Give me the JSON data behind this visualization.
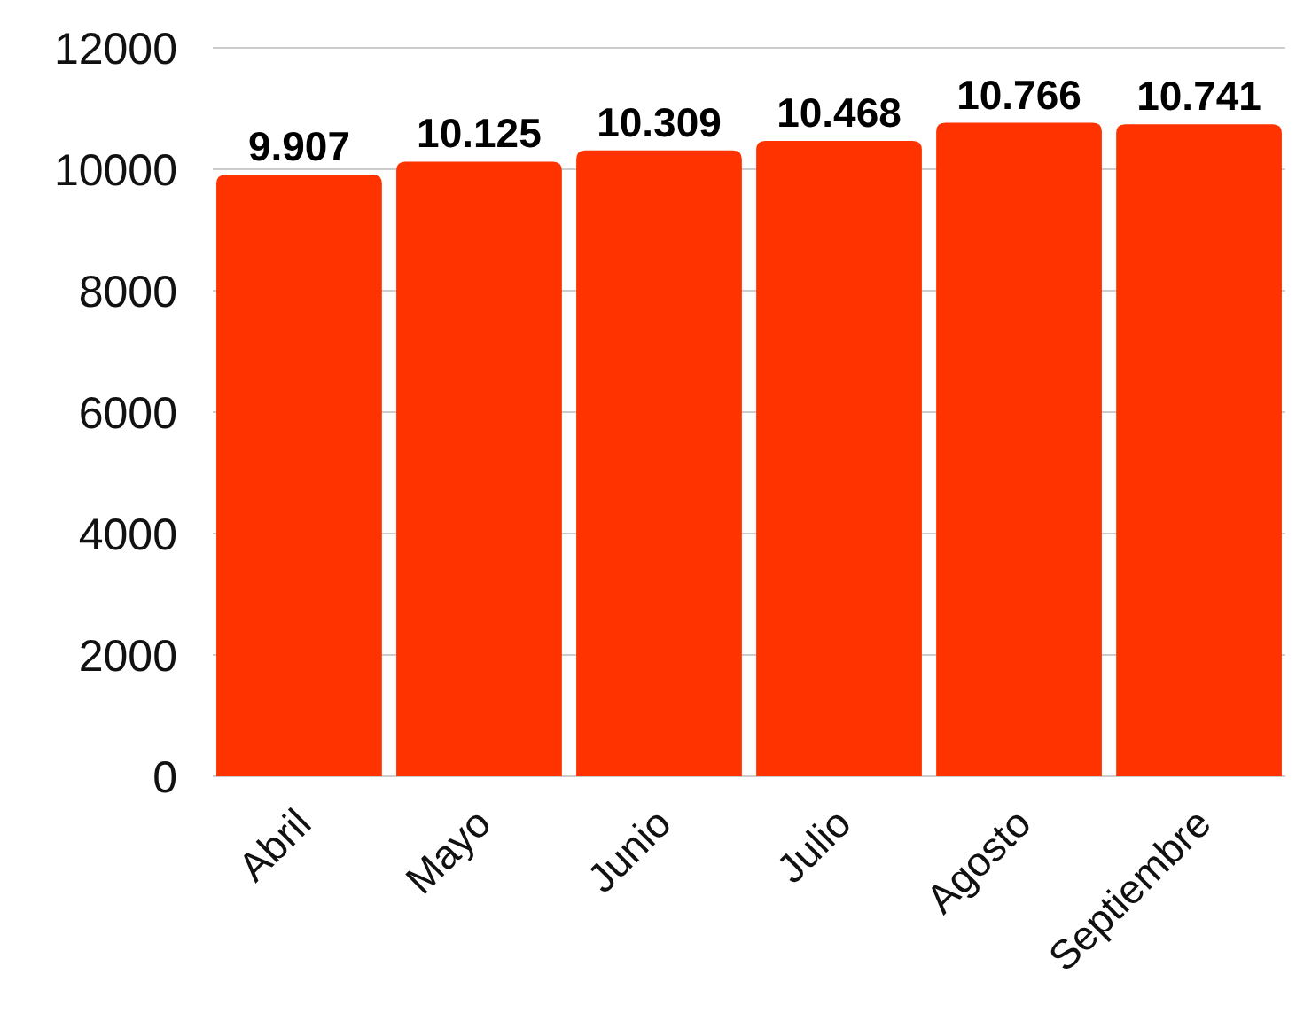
{
  "chart_data": {
    "type": "bar",
    "categories": [
      "Abril",
      "Mayo",
      "Junio",
      "Julio",
      "Agosto",
      "Septiembre"
    ],
    "values": [
      9907,
      10125,
      10309,
      10468,
      10766,
      10741
    ],
    "value_labels": [
      "9.907",
      "10.125",
      "10.309",
      "10.468",
      "10.766",
      "10.741"
    ],
    "color": "#ff3300",
    "ylim": [
      0,
      12000
    ],
    "yticks": [
      0,
      2000,
      4000,
      6000,
      8000,
      10000,
      12000
    ],
    "grid": "y"
  }
}
